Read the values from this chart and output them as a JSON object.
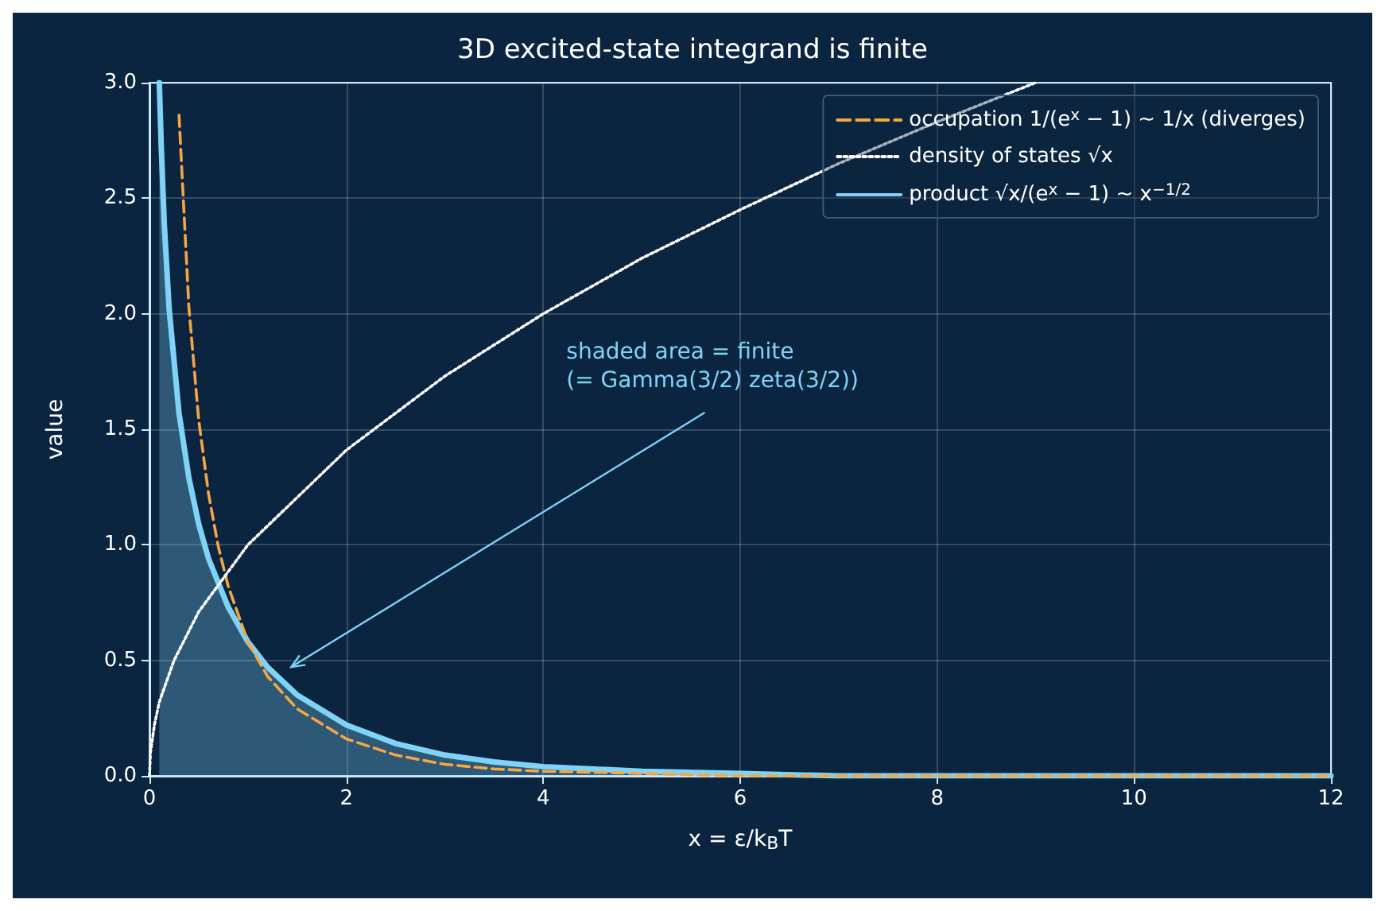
{
  "chart_data": {
    "type": "line",
    "title": "3D excited-state integrand is finite",
    "xlabel": "x = ε/k$_{B}$T",
    "ylabel": "value",
    "xlim": [
      0,
      12
    ],
    "ylim": [
      0,
      3
    ],
    "xticks": [
      0,
      2,
      4,
      6,
      8,
      10,
      12
    ],
    "yticks": [
      {
        "value": 0,
        "label": "0.0"
      },
      0.5,
      {
        "value": 1,
        "label": "1.0"
      },
      1.5,
      {
        "value": 2,
        "label": "2.0"
      },
      2.5,
      {
        "value": 3,
        "label": "3.0"
      }
    ],
    "grid": true,
    "legend": "top right",
    "marker": "none",
    "annotations": [
      "shaded area = finite\n(= Gamma(3/2) zeta(3/2))"
    ],
    "series": [
      {
        "name": "occupation 1/(e$^{x}$ − 1) ∼ 1/x (diverges)",
        "color": "#f5a742",
        "line_style": "dashed",
        "x": [
          0.3,
          0.4,
          0.5,
          0.6,
          0.7,
          0.8,
          1.0,
          1.2,
          1.5,
          2,
          2.5,
          3,
          3.5,
          4,
          5,
          6,
          8,
          10,
          12
        ],
        "values": [
          2.86,
          2.03,
          1.54,
          1.22,
          0.99,
          0.82,
          0.58,
          0.43,
          0.29,
          0.16,
          0.09,
          0.05,
          0.03,
          0.02,
          0.01,
          0,
          0,
          0,
          0
        ]
      },
      {
        "name": "density of states √x",
        "color": "#ffffff",
        "line_style": "dotted",
        "x": [
          0,
          0.01,
          0.05,
          0.1,
          0.25,
          0.5,
          1,
          2,
          3,
          4,
          5,
          6,
          7,
          8,
          9
        ],
        "values": [
          0,
          0.1,
          0.22,
          0.32,
          0.5,
          0.71,
          1,
          1.41,
          1.73,
          2,
          2.24,
          2.45,
          2.65,
          2.83,
          3.0
        ]
      },
      {
        "name": "product √x/(e$^{x}$ − 1) ∼ x$^{−1/2}$",
        "type": "area",
        "color": "#7fd3f7",
        "line_style": "solid",
        "x": [
          0.1,
          0.12,
          0.15,
          0.2,
          0.3,
          0.4,
          0.5,
          0.6,
          0.8,
          1.0,
          1.2,
          1.5,
          2,
          2.5,
          3,
          3.5,
          4,
          5,
          6,
          7,
          8,
          10,
          12
        ],
        "values": [
          3.0,
          2.72,
          2.39,
          2.02,
          1.57,
          1.29,
          1.09,
          0.94,
          0.73,
          0.58,
          0.47,
          0.35,
          0.22,
          0.14,
          0.09,
          0.06,
          0.04,
          0.02,
          0.01,
          0,
          0,
          0,
          0
        ]
      }
    ]
  }
}
